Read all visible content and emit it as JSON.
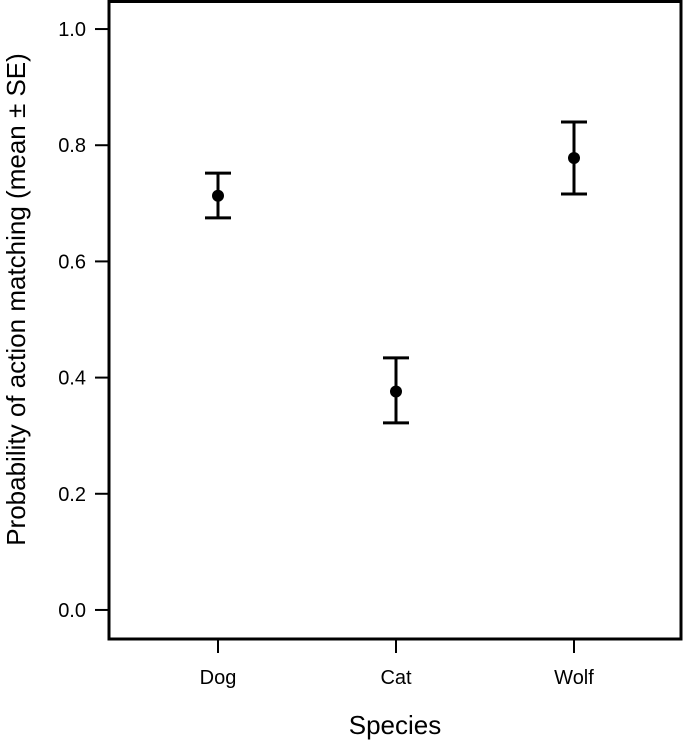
{
  "chart_data": {
    "type": "scatter",
    "title": "",
    "xlabel": "Species",
    "ylabel": "Probability of action matching (mean ± SE)",
    "categories": [
      "Dog",
      "Cat",
      "Wolf"
    ],
    "series": [
      {
        "values": [
          0.713,
          0.376,
          0.778
        ],
        "err_low": [
          0.675,
          0.322,
          0.716
        ],
        "err_high": [
          0.752,
          0.434,
          0.84
        ]
      }
    ],
    "ylim": [
      -0.05,
      1.05
    ],
    "yticks": [
      0.0,
      0.2,
      0.4,
      0.6,
      0.8,
      1.0
    ],
    "ytick_labels": [
      "0.0",
      "0.2",
      "0.4",
      "0.6",
      "0.8",
      "1.0"
    ],
    "grid": false,
    "legend": "none",
    "colors": {
      "marker": "#000000",
      "axis": "#000000",
      "background": "#ffffff"
    }
  }
}
